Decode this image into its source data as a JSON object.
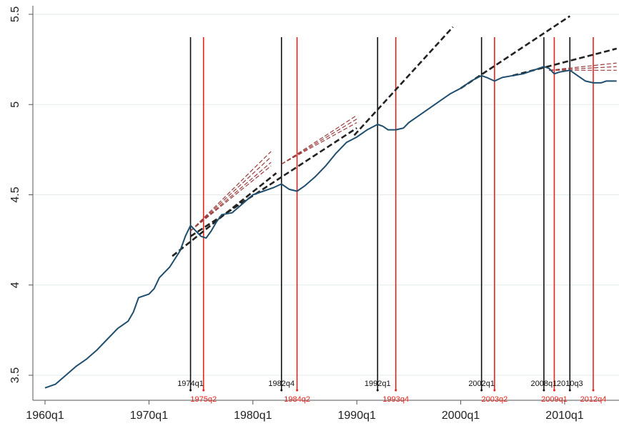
{
  "chart_data": {
    "type": "line",
    "title": "",
    "xlabel": "",
    "ylabel": "",
    "x_domain": [
      "1960q1",
      "2015q1"
    ],
    "ylim": [
      3.4,
      5.55
    ],
    "grid": "horizontal",
    "x_ticks": [
      {
        "t": "1960q1",
        "label": "1960q1"
      },
      {
        "t": "1970q1",
        "label": "1970q1"
      },
      {
        "t": "1980q1",
        "label": "1980q1"
      },
      {
        "t": "1990q1",
        "label": "1990q1"
      },
      {
        "t": "2000q1",
        "label": "2000q1"
      },
      {
        "t": "2010q1",
        "label": "2010q1"
      }
    ],
    "y_ticks": [
      {
        "v": 3.5,
        "label": "3.5"
      },
      {
        "v": 4,
        "label": "4"
      },
      {
        "v": 4.5,
        "label": "4.5"
      },
      {
        "v": 5,
        "label": "5"
      },
      {
        "v": 5.5,
        "label": "5.5"
      }
    ],
    "series": [
      {
        "kind": "actual",
        "color": "#1f4e6e",
        "points": [
          [
            "1960q1",
            3.43
          ],
          [
            "1961q1",
            3.45
          ],
          [
            "1962q1",
            3.5
          ],
          [
            "1963q1",
            3.55
          ],
          [
            "1964q1",
            3.59
          ],
          [
            "1965q1",
            3.64
          ],
          [
            "1966q1",
            3.7
          ],
          [
            "1967q1",
            3.76
          ],
          [
            "1968q1",
            3.8
          ],
          [
            "1968q3",
            3.85
          ],
          [
            "1969q1",
            3.93
          ],
          [
            "1969q3",
            3.94
          ],
          [
            "1970q1",
            3.95
          ],
          [
            "1970q3",
            3.98
          ],
          [
            "1971q1",
            4.04
          ],
          [
            "1972q1",
            4.1
          ],
          [
            "1973q1",
            4.19
          ],
          [
            "1973q3",
            4.27
          ],
          [
            "1974q1",
            4.33
          ],
          [
            "1974q3",
            4.3
          ],
          [
            "1975q1",
            4.27
          ],
          [
            "1975q3",
            4.26
          ],
          [
            "1976q1",
            4.3
          ],
          [
            "1976q3",
            4.35
          ],
          [
            "1977q1",
            4.39
          ],
          [
            "1978q1",
            4.4
          ],
          [
            "1979q1",
            4.45
          ],
          [
            "1980q1",
            4.5
          ],
          [
            "1981q1",
            4.52
          ],
          [
            "1982q1",
            4.54
          ],
          [
            "1982q4",
            4.56
          ],
          [
            "1983q3",
            4.53
          ],
          [
            "1984q2",
            4.52
          ],
          [
            "1985q1",
            4.55
          ],
          [
            "1986q1",
            4.6
          ],
          [
            "1987q1",
            4.66
          ],
          [
            "1988q1",
            4.73
          ],
          [
            "1989q1",
            4.79
          ],
          [
            "1990q1",
            4.82
          ],
          [
            "1991q1",
            4.86
          ],
          [
            "1992q1",
            4.89
          ],
          [
            "1992q3",
            4.88
          ],
          [
            "1993q1",
            4.86
          ],
          [
            "1993q4",
            4.86
          ],
          [
            "1994q3",
            4.87
          ],
          [
            "1995q1",
            4.9
          ],
          [
            "1996q1",
            4.94
          ],
          [
            "1997q1",
            4.98
          ],
          [
            "1998q1",
            5.02
          ],
          [
            "1999q1",
            5.06
          ],
          [
            "2000q1",
            5.09
          ],
          [
            "2001q1",
            5.13
          ],
          [
            "2002q1",
            5.16
          ],
          [
            "2002q3",
            5.15
          ],
          [
            "2003q2",
            5.13
          ],
          [
            "2004q1",
            5.15
          ],
          [
            "2005q1",
            5.16
          ],
          [
            "2006q1",
            5.17
          ],
          [
            "2007q1",
            5.19
          ],
          [
            "2008q1",
            5.21
          ],
          [
            "2008q3",
            5.2
          ],
          [
            "2009q1",
            5.17
          ],
          [
            "2009q3",
            5.18
          ],
          [
            "2010q3",
            5.19
          ],
          [
            "2011q1",
            5.17
          ],
          [
            "2011q3",
            5.15
          ],
          [
            "2012q1",
            5.13
          ],
          [
            "2012q4",
            5.12
          ],
          [
            "2013q3",
            5.12
          ],
          [
            "2014q1",
            5.13
          ],
          [
            "2015q1",
            5.13
          ]
        ]
      },
      {
        "kind": "trend",
        "color": "#222222",
        "points": [
          [
            "1972q2",
            4.16
          ],
          [
            "1982q2",
            4.62
          ]
        ]
      },
      {
        "kind": "trend",
        "color": "#222222",
        "points": [
          [
            "1974q1",
            4.27
          ],
          [
            "1990q1",
            4.87
          ]
        ]
      },
      {
        "kind": "trend",
        "color": "#222222",
        "points": [
          [
            "1989q4",
            4.83
          ],
          [
            "1999q2",
            5.43
          ]
        ]
      },
      {
        "kind": "trend",
        "color": "#222222",
        "points": [
          [
            "2000q1",
            5.09
          ],
          [
            "2010q3",
            5.49
          ]
        ]
      },
      {
        "kind": "trend",
        "color": "#222222",
        "points": [
          [
            "2005q1",
            5.16
          ],
          [
            "2015q1",
            5.31
          ]
        ]
      },
      {
        "kind": "forecast",
        "color": "#9a3b3b",
        "points": [
          [
            "1974q1",
            4.3
          ],
          [
            "1981q4",
            4.74
          ]
        ]
      },
      {
        "kind": "forecast",
        "color": "#9a3b3b",
        "points": [
          [
            "1974q1",
            4.3
          ],
          [
            "1981q4",
            4.71
          ]
        ]
      },
      {
        "kind": "forecast",
        "color": "#9a3b3b",
        "points": [
          [
            "1974q1",
            4.3
          ],
          [
            "1981q4",
            4.68
          ]
        ]
      },
      {
        "kind": "forecast",
        "color": "#9a3b3b",
        "points": [
          [
            "1974q1",
            4.3
          ],
          [
            "1981q4",
            4.66
          ]
        ]
      },
      {
        "kind": "forecast",
        "color": "#9a3b3b",
        "points": [
          [
            "1982q4",
            4.67
          ],
          [
            "1990q1",
            4.94
          ]
        ]
      },
      {
        "kind": "forecast",
        "color": "#9a3b3b",
        "points": [
          [
            "1982q4",
            4.67
          ],
          [
            "1990q1",
            4.92
          ]
        ]
      },
      {
        "kind": "forecast",
        "color": "#9a3b3b",
        "points": [
          [
            "1982q4",
            4.67
          ],
          [
            "1990q1",
            4.9
          ]
        ]
      },
      {
        "kind": "forecast",
        "color": "#9a3b3b",
        "points": [
          [
            "2008q3",
            5.19
          ],
          [
            "2015q1",
            5.23
          ]
        ]
      },
      {
        "kind": "forecast",
        "color": "#9a3b3b",
        "points": [
          [
            "2008q3",
            5.19
          ],
          [
            "2015q1",
            5.21
          ]
        ]
      },
      {
        "kind": "forecast",
        "color": "#9a3b3b",
        "points": [
          [
            "2008q3",
            5.19
          ],
          [
            "2015q1",
            5.19
          ]
        ]
      }
    ],
    "events": [
      {
        "t": "1974q1",
        "label": "1974q1",
        "color": "#111111",
        "row": "top"
      },
      {
        "t": "1975q2",
        "label": "1975q2",
        "color": "#e8231c",
        "row": "bottom"
      },
      {
        "t": "1982q4",
        "label": "1982q4",
        "color": "#111111",
        "row": "top"
      },
      {
        "t": "1984q2",
        "label": "1984q2",
        "color": "#e8231c",
        "row": "bottom"
      },
      {
        "t": "1992q1",
        "label": "1992q1",
        "color": "#111111",
        "row": "top"
      },
      {
        "t": "1993q4",
        "label": "1993q4",
        "color": "#e8231c",
        "row": "bottom"
      },
      {
        "t": "2002q1",
        "label": "2002q1",
        "color": "#111111",
        "row": "top"
      },
      {
        "t": "2003q2",
        "label": "2003q2",
        "color": "#e8231c",
        "row": "bottom"
      },
      {
        "t": "2008q1",
        "label": "2008q1",
        "color": "#111111",
        "row": "top"
      },
      {
        "t": "2009q1",
        "label": "2009q1",
        "color": "#e8231c",
        "row": "bottom"
      },
      {
        "t": "2010q3",
        "label": "2010q3",
        "color": "#111111",
        "row": "top"
      },
      {
        "t": "2012q4",
        "label": "2012q4",
        "color": "#e8231c",
        "row": "bottom"
      }
    ]
  }
}
